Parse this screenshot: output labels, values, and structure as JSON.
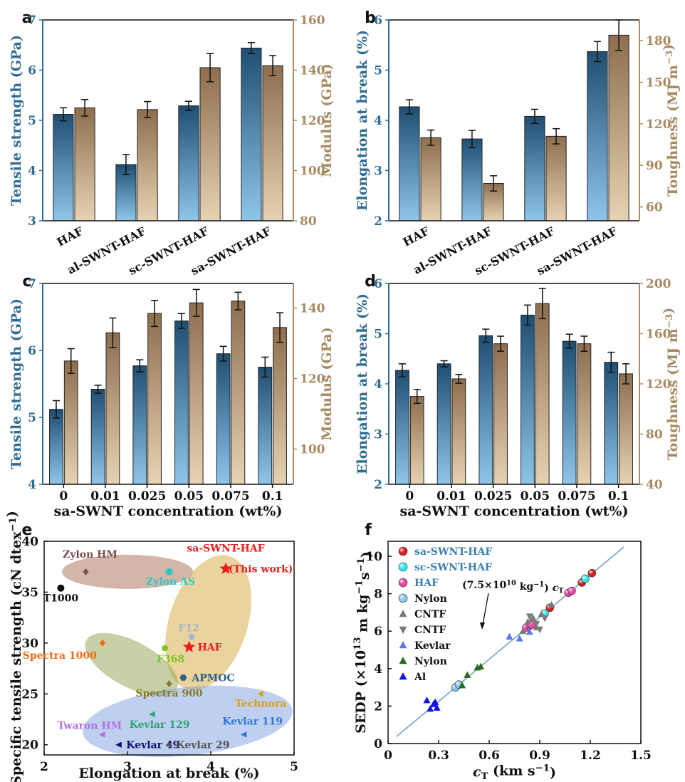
{
  "colors": {
    "blue_dark": "#1f4e72",
    "blue_light": "#8ec6ea",
    "tan_dark": "#8d6e4e",
    "tan_light": "#e6d3b3",
    "axis_blue": "#2f6c93",
    "axis_tan": "#a88a62",
    "fit_line": "#8bb0cc"
  },
  "chart_data": [
    {
      "panel": "a",
      "type": "bar",
      "categories": [
        "HAF",
        "al-SWNT-HAF",
        "sc-SWNT-HAF",
        "sa-SWNT-HAF"
      ],
      "left_axis": {
        "label": "Tensile strength (GPa)",
        "lim": [
          3,
          7
        ],
        "ticks": [
          "3",
          "4",
          "5",
          "6",
          "7"
        ]
      },
      "right_axis": {
        "label": "Modulus (GPa)",
        "lim": [
          80,
          160
        ],
        "ticks": [
          "80",
          "100",
          "120",
          "140",
          "160"
        ]
      },
      "series": [
        {
          "name": "Tensile strength",
          "axis": "left",
          "values": [
            5.12,
            4.12,
            5.29,
            6.44
          ],
          "errors": [
            0.13,
            0.2,
            0.09,
            0.11
          ]
        },
        {
          "name": "Modulus",
          "axis": "right",
          "values": [
            125,
            124.3,
            141,
            141.8
          ],
          "errors": [
            3.3,
            3.2,
            5.6,
            4.0
          ]
        }
      ]
    },
    {
      "panel": "b",
      "type": "bar",
      "categories": [
        "HAF",
        "al-SWNT-HAF",
        "sc-SWNT-HAF",
        "sa-SWNT-HAF"
      ],
      "left_axis": {
        "label": "Elongation at break (%)",
        "lim": [
          2,
          6
        ],
        "ticks": [
          "2",
          "3",
          "4",
          "5",
          "6"
        ]
      },
      "right_axis": {
        "label": "Toughness (MJ m−3)",
        "lim": [
          50,
          195
        ],
        "ticks": [
          "60",
          "90",
          "120",
          "150",
          "180"
        ]
      },
      "series": [
        {
          "name": "Elongation at break",
          "axis": "left",
          "values": [
            4.27,
            3.63,
            4.08,
            5.37
          ],
          "errors": [
            0.14,
            0.17,
            0.14,
            0.2
          ]
        },
        {
          "name": "Toughness",
          "axis": "right",
          "values": [
            110,
            77,
            111,
            184
          ],
          "errors": [
            5.5,
            5.5,
            5.5,
            11
          ]
        }
      ]
    },
    {
      "panel": "c",
      "type": "bar",
      "categories": [
        "0",
        "0.01",
        "0.025",
        "0.05",
        "0.075",
        "0.1"
      ],
      "xlabel": "sa-SWNT concentration (wt%)",
      "left_axis": {
        "label": "Tensile strength (GPa)",
        "lim": [
          4,
          7
        ],
        "ticks": [
          "4",
          "5",
          "6",
          "7"
        ]
      },
      "right_axis": {
        "label": "Modulus (GPa)",
        "lim": [
          90,
          147
        ],
        "ticks": [
          "100",
          "120",
          "140"
        ]
      },
      "series": [
        {
          "name": "Tensile strength",
          "axis": "left",
          "values": [
            5.12,
            5.42,
            5.77,
            6.44,
            5.95,
            5.75
          ],
          "errors": [
            0.13,
            0.06,
            0.09,
            0.11,
            0.11,
            0.15
          ]
        },
        {
          "name": "Modulus",
          "axis": "right",
          "values": [
            125,
            133,
            138.5,
            141.5,
            142,
            134.5
          ],
          "errors": [
            3.5,
            4.2,
            3.7,
            3.8,
            2.5,
            4.2
          ]
        }
      ]
    },
    {
      "panel": "d",
      "type": "bar",
      "categories": [
        "0",
        "0.01",
        "0.025",
        "0.05",
        "0.075",
        "0.1"
      ],
      "xlabel": "sa-SWNT concentration (wt%)",
      "left_axis": {
        "label": "Elongation at break (%)",
        "lim": [
          2,
          6
        ],
        "ticks": [
          "2",
          "3",
          "4",
          "5",
          "6"
        ]
      },
      "right_axis": {
        "label": "Toughness (MJ m−3)",
        "lim": [
          40,
          200
        ],
        "ticks": [
          "40",
          "80",
          "120",
          "160",
          "200"
        ]
      },
      "series": [
        {
          "name": "Elongation at break",
          "axis": "left",
          "values": [
            4.27,
            4.4,
            4.96,
            5.37,
            4.85,
            4.43
          ],
          "errors": [
            0.13,
            0.06,
            0.13,
            0.2,
            0.14,
            0.2
          ]
        },
        {
          "name": "Toughness",
          "axis": "right",
          "values": [
            110,
            124,
            152,
            184,
            152,
            128
          ],
          "errors": [
            5.5,
            3.5,
            6,
            12,
            6,
            8
          ]
        }
      ]
    },
    {
      "panel": "e",
      "type": "scatter",
      "xlabel": "Elongation at break (%)",
      "ylabel": "Specific tensile strength (cN dtex−1)",
      "xlim": [
        2,
        5
      ],
      "ylim": [
        19,
        40
      ],
      "xticks": [
        "2",
        "3",
        "4",
        "5"
      ],
      "yticks": [
        "20",
        "25",
        "30",
        "35",
        "40"
      ],
      "points": [
        {
          "name": "T1000",
          "x": 2.2,
          "y": 35.4,
          "color": "#111111",
          "marker": "circle"
        },
        {
          "name": "Zylon HM",
          "x": 2.5,
          "y": 37.0,
          "color": "#7b4f4a",
          "marker": "diamond"
        },
        {
          "name": "Zylon AS",
          "x": 3.5,
          "y": 37.0,
          "color": "#2fc6c6",
          "marker": "circle"
        },
        {
          "name": "sa-SWNT-HAF",
          "x": 4.18,
          "y": 37.3,
          "color": "#ee1c1c",
          "marker": "star"
        },
        {
          "name": "F12",
          "x": 3.77,
          "y": 30.6,
          "color": "#a3b7cc",
          "marker": "pentagon"
        },
        {
          "name": "HAF",
          "x": 3.74,
          "y": 29.6,
          "color": "#ee1c1c",
          "marker": "star"
        },
        {
          "name": "Spectra 1000",
          "x": 2.7,
          "y": 30.0,
          "color": "#f06a10",
          "marker": "diamond"
        },
        {
          "name": "F368",
          "x": 3.45,
          "y": 29.5,
          "color": "#7cc626",
          "marker": "pentagon"
        },
        {
          "name": "APMOC",
          "x": 3.67,
          "y": 26.6,
          "color": "#2f5f8a",
          "marker": "hexagon"
        },
        {
          "name": "Spectra 900",
          "x": 3.5,
          "y": 26.0,
          "color": "#8a7a1e",
          "marker": "diamond"
        },
        {
          "name": "Technora",
          "x": 4.6,
          "y": 25.0,
          "color": "#d8a010",
          "marker": "tri-left"
        },
        {
          "name": "Kevlar 129",
          "x": 3.3,
          "y": 23.0,
          "color": "#2aa673",
          "marker": "tri-left"
        },
        {
          "name": "Kevlar 119",
          "x": 4.4,
          "y": 21.0,
          "color": "#2d79d6",
          "marker": "tri-left"
        },
        {
          "name": "Twaron HM",
          "x": 2.7,
          "y": 21.0,
          "color": "#b070e0",
          "marker": "tri-left"
        },
        {
          "name": "Kevlar 49",
          "x": 2.9,
          "y": 20.0,
          "color": "#10106e",
          "marker": "tri-left"
        },
        {
          "name": "Kevlar 29",
          "x": 3.5,
          "y": 20.0,
          "color": "#555555",
          "marker": "tri-left"
        }
      ],
      "annotations": {
        "this_work": "(This work)"
      }
    },
    {
      "panel": "f",
      "type": "scatter",
      "xlabel": "cT (km s−1)",
      "ylabel": "SEDP (×10^13 m kg−1 s−1)",
      "xlim": [
        0,
        1.5
      ],
      "ylim": [
        0,
        10.8
      ],
      "xticks": [
        "0",
        "0.3",
        "0.6",
        "0.9",
        "1.2",
        "1.5"
      ],
      "yticks": [
        "0",
        "2",
        "4",
        "6",
        "8",
        "10"
      ],
      "fit_label": "(7.5×10^10 kg−1) cT",
      "fit_line": {
        "x": [
          0.05,
          1.4
        ],
        "y": [
          0.375,
          10.5
        ]
      },
      "series": [
        {
          "name": "sa-SWNT-HAF",
          "color": "#d42020",
          "marker": "ball",
          "x": [
            0.96,
            1.15,
            1.21
          ],
          "y": [
            7.25,
            8.6,
            9.1
          ]
        },
        {
          "name": "sc-SWNT-HAF",
          "color": "#37e6ee",
          "marker": "ball",
          "x": [
            0.93,
            1.17
          ],
          "y": [
            6.95,
            8.8
          ]
        },
        {
          "name": "HAF",
          "color": "#ee45a6",
          "marker": "ball",
          "x": [
            0.82,
            0.84,
            0.85,
            1.07,
            1.09
          ],
          "y": [
            6.2,
            6.3,
            6.35,
            8.05,
            8.15
          ]
        },
        {
          "name": "Nylon",
          "color": "#87c6ec",
          "marker": "ball",
          "x": [
            0.4,
            0.42
          ],
          "y": [
            3.0,
            3.15
          ]
        },
        {
          "name": "CNTF",
          "color": "#7a7a7a",
          "marker": "tri-up",
          "x": [
            0.8,
            0.86,
            0.88,
            0.91,
            0.97,
            0.83
          ],
          "y": [
            6.0,
            6.7,
            6.2,
            6.9,
            7.4,
            6.5
          ]
        },
        {
          "name": "CNTF",
          "color": "#7a7a7a",
          "marker": "tri-down",
          "x": [
            0.84,
            0.88,
            0.9,
            0.93
          ],
          "y": [
            6.8,
            6.4,
            6.1,
            6.7
          ]
        },
        {
          "name": "Kevlar",
          "color": "#5a78ee",
          "marker": "tri-up",
          "x": [
            0.72,
            0.78,
            0.84
          ],
          "y": [
            5.7,
            5.6,
            5.95
          ]
        },
        {
          "name": "Nylon",
          "color": "#2a6a1e",
          "marker": "tri-up",
          "x": [
            0.44,
            0.47,
            0.53,
            0.55
          ],
          "y": [
            3.1,
            3.65,
            4.05,
            4.1
          ]
        },
        {
          "name": "Al",
          "color": "#1010ee",
          "marker": "tri-up",
          "x": [
            0.23,
            0.25,
            0.27,
            0.29,
            0.28
          ],
          "y": [
            2.3,
            1.85,
            2.1,
            1.9,
            2.2
          ]
        }
      ]
    }
  ]
}
